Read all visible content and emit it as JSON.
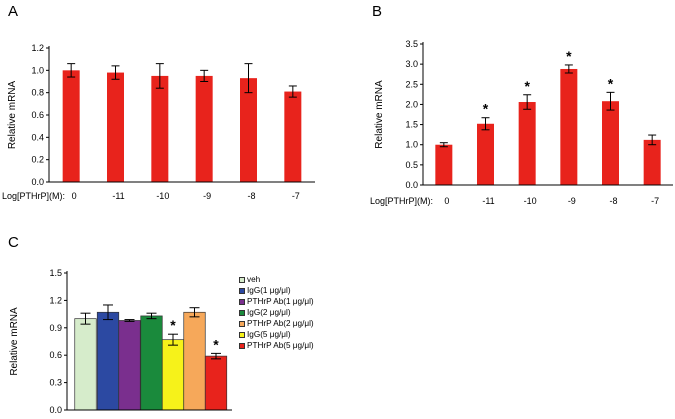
{
  "chart_data": [
    {
      "panel": "A",
      "type": "bar",
      "xlabel": "Log[PTHrP](M):",
      "ylabel": "Relative mRNA",
      "categories": [
        "0",
        "-11",
        "-10",
        "-9",
        "-8",
        "-7"
      ],
      "values": [
        1.0,
        0.98,
        0.95,
        0.95,
        0.93,
        0.81
      ],
      "errors": [
        0.06,
        0.06,
        0.11,
        0.05,
        0.13,
        0.05
      ],
      "significant": [
        false,
        false,
        false,
        false,
        false,
        false
      ],
      "ylim": [
        0,
        1.2
      ],
      "yticks": [
        "0.0",
        "0.2",
        "0.4",
        "0.6",
        "0.8",
        "1.0",
        "1.2"
      ],
      "color": "#e8231c"
    },
    {
      "panel": "B",
      "type": "bar",
      "xlabel": "Log[PTHrP](M):",
      "ylabel": "Relative mRNA",
      "categories": [
        "0",
        "-11",
        "-10",
        "-9",
        "-8",
        "-7"
      ],
      "values": [
        1.0,
        1.52,
        2.06,
        2.88,
        2.08,
        1.12
      ],
      "errors": [
        0.05,
        0.15,
        0.18,
        0.1,
        0.22,
        0.12
      ],
      "significant": [
        false,
        true,
        true,
        true,
        true,
        false
      ],
      "significance_mark": "*",
      "ylim": [
        0,
        3.5
      ],
      "yticks": [
        "0.0",
        "0.5",
        "1.0",
        "1.5",
        "2.0",
        "2.5",
        "3.0",
        "3.5"
      ],
      "color": "#e8231c"
    },
    {
      "panel": "C",
      "type": "bar",
      "xlabel": "",
      "ylabel": "Relative mRNA",
      "categories": [
        "veh",
        "IgG(1 μg/μl)",
        "PTHrP Ab(1 μg/μl)",
        "IgG(2 μg/μl)",
        "PTHrP Ab(2 μg/μl)",
        "IgG(5 μg/μl)",
        "PTHrP Ab(5 μg/μl)"
      ],
      "bar_categories": [
        "veh",
        "IgG(1 μg/μl)",
        "PTHrP Ab(1 μg/μl)",
        "IgG(2 μg/μl)",
        "IgG(5 μg/μl)",
        "PTHrP Ab(2 μg/μl)",
        "PTHrP Ab(5 μg/μl)"
      ],
      "values": [
        1.0,
        1.07,
        0.98,
        1.03,
        0.77,
        1.07,
        0.59
      ],
      "errors": [
        0.06,
        0.08,
        0.01,
        0.03,
        0.06,
        0.05,
        0.03
      ],
      "significant": [
        false,
        false,
        false,
        false,
        true,
        false,
        true
      ],
      "significance_mark": "*",
      "bar_colors": [
        "#d6eccb",
        "#2c49a2",
        "#7a2f8e",
        "#1a8a3c",
        "#f6f21a",
        "#f6a85a",
        "#e8231c"
      ],
      "legend_colors": [
        "#d6eccb",
        "#2c49a2",
        "#7a2f8e",
        "#1a8a3c",
        "#f6a85a",
        "#f6f21a",
        "#e8231c"
      ],
      "legend": [
        "veh",
        "IgG(1 μg/μl)",
        "PTHrP Ab(1 μg/μl)",
        "IgG(2 μg/μl)",
        "PTHrP Ab(2 μg/μl)",
        "IgG(5 μg/μl)",
        "PTHrP Ab(5 μg/μl)"
      ],
      "ylim": [
        0,
        1.5
      ],
      "yticks": [
        "0.0",
        "0.3",
        "0.6",
        "0.9",
        "1.2",
        "1.5"
      ]
    }
  ]
}
